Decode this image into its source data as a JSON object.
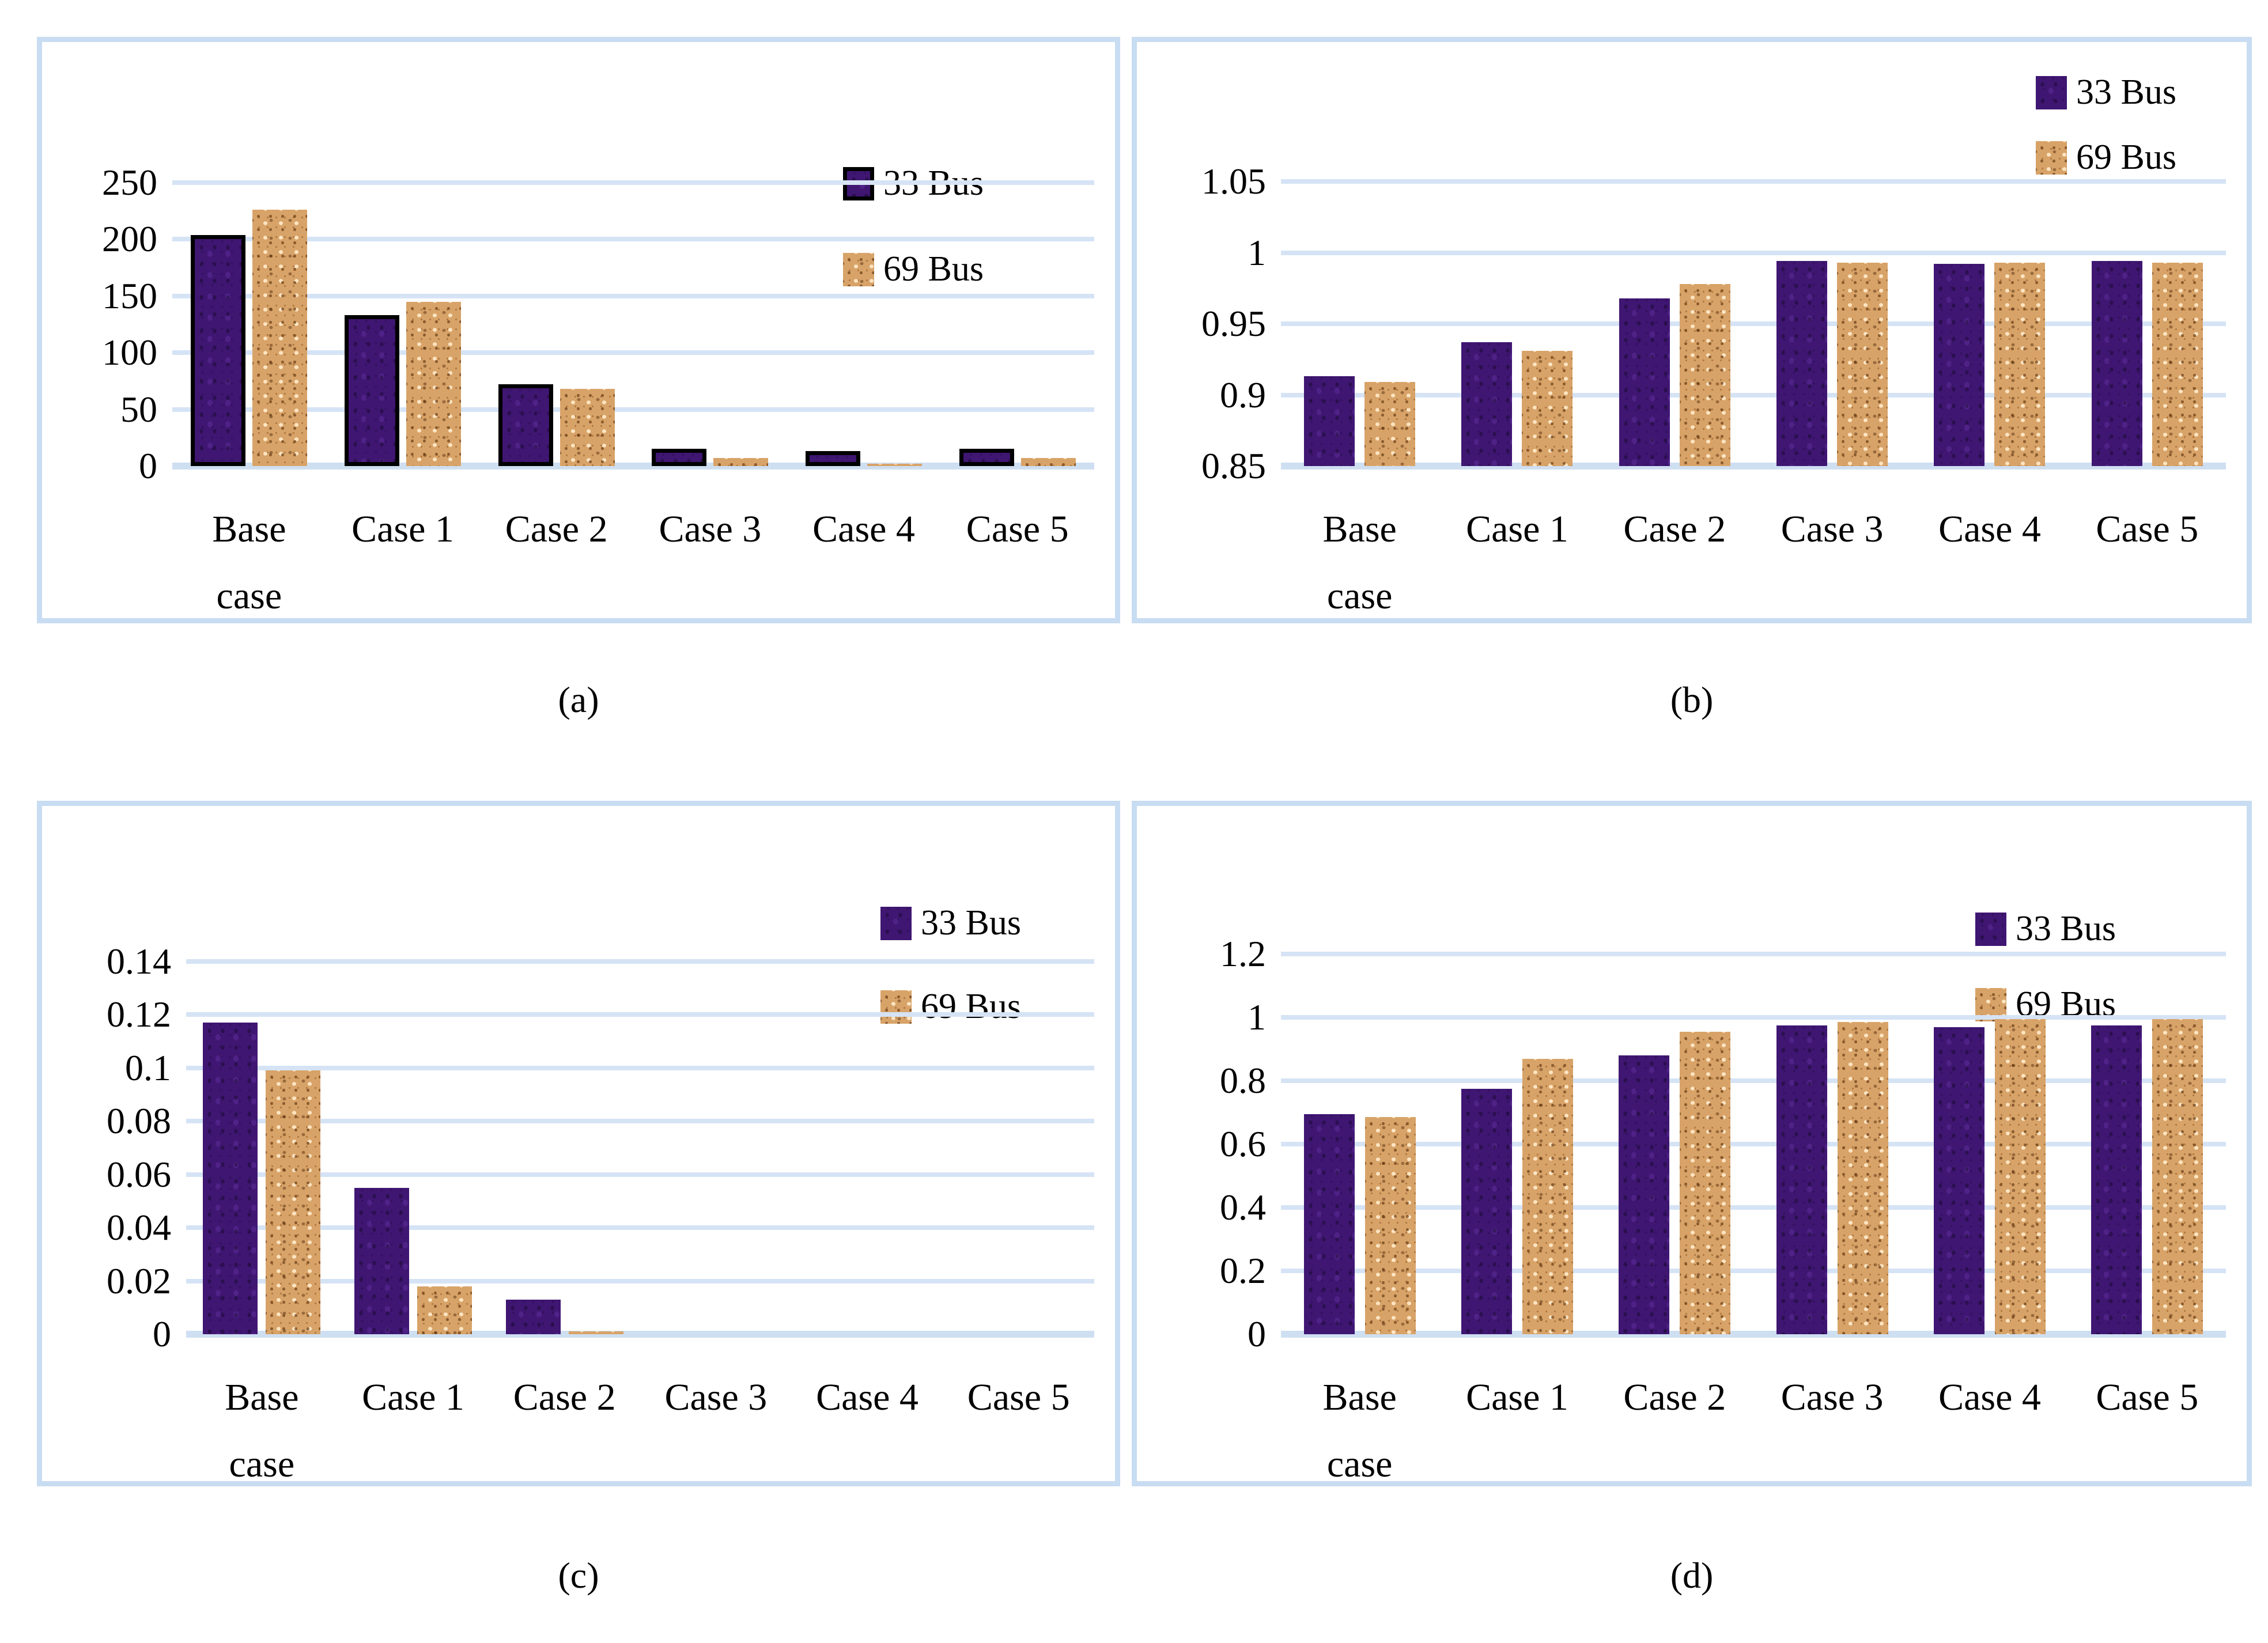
{
  "figure_captions": [
    "(a)",
    "(b)",
    "(c)",
    "(d)"
  ],
  "legend_labels": [
    "33 Bus",
    "69 Bus"
  ],
  "colors": {
    "series_33_bus": "#3f1672",
    "series_69_bus": "#d8a368",
    "bar_outline": "#000000",
    "gridline": "#d5e3f5",
    "panel_border": "#c8dcf2",
    "text": "#000000"
  },
  "chart_data": [
    {
      "id": "a",
      "type": "bar",
      "categories": [
        "Base case",
        "Case 1",
        "Case 2",
        "Case 3",
        "Case 4",
        "Case 5"
      ],
      "x_labels": [
        "Base\ncase",
        "Case 1",
        "Case 2",
        "Case 3",
        "Case 4",
        "Case 5"
      ],
      "series": [
        {
          "name": "33 Bus",
          "outlined": true,
          "values": [
            204,
            133,
            72,
            15,
            13,
            15
          ]
        },
        {
          "name": "69 Bus",
          "outlined": false,
          "values": [
            226,
            145,
            68,
            7,
            2,
            7
          ]
        }
      ],
      "ylim": [
        0,
        250
      ],
      "yticks": [
        {
          "value": 0,
          "label": "0"
        },
        {
          "value": 50,
          "label": "50"
        },
        {
          "value": 100,
          "label": "100"
        },
        {
          "value": 150,
          "label": "150"
        },
        {
          "value": 200,
          "label": "200"
        },
        {
          "value": 250,
          "label": "250"
        }
      ],
      "grid": true,
      "legend_position": "upper-right"
    },
    {
      "id": "b",
      "type": "bar",
      "categories": [
        "Base case",
        "Case 1",
        "Case 2",
        "Case 3",
        "Case 4",
        "Case 5"
      ],
      "x_labels": [
        "Base\ncase",
        "Case 1",
        "Case 2",
        "Case 3",
        "Case 4",
        "Case 5"
      ],
      "series": [
        {
          "name": "33 Bus",
          "outlined": false,
          "values": [
            0.913,
            0.937,
            0.968,
            0.994,
            0.992,
            0.994
          ]
        },
        {
          "name": "69 Bus",
          "outlined": false,
          "values": [
            0.909,
            0.931,
            0.978,
            0.993,
            0.993,
            0.993
          ]
        }
      ],
      "ylim": [
        0.85,
        1.05
      ],
      "yticks": [
        {
          "value": 0.85,
          "label": "0.85"
        },
        {
          "value": 0.9,
          "label": "0.9"
        },
        {
          "value": 0.95,
          "label": "0.95"
        },
        {
          "value": 1,
          "label": "1"
        },
        {
          "value": 1.05,
          "label": "1.05"
        }
      ],
      "grid": true,
      "legend_position": "upper-right"
    },
    {
      "id": "c",
      "type": "bar",
      "categories": [
        "Base case",
        "Case 1",
        "Case 2",
        "Case 3",
        "Case 4",
        "Case 5"
      ],
      "x_labels": [
        "Base\ncase",
        "Case 1",
        "Case 2",
        "Case 3",
        "Case 4",
        "Case 5"
      ],
      "series": [
        {
          "name": "33 Bus",
          "outlined": false,
          "values": [
            0.117,
            0.055,
            0.013,
            0,
            0,
            0
          ]
        },
        {
          "name": "69 Bus",
          "outlined": false,
          "values": [
            0.099,
            0.018,
            0.001,
            0,
            0,
            0
          ]
        }
      ],
      "ylim": [
        0,
        0.14
      ],
      "yticks": [
        {
          "value": 0,
          "label": "0"
        },
        {
          "value": 0.02,
          "label": "0.02"
        },
        {
          "value": 0.04,
          "label": "0.04"
        },
        {
          "value": 0.06,
          "label": "0.06"
        },
        {
          "value": 0.08,
          "label": "0.08"
        },
        {
          "value": 0.1,
          "label": "0.1"
        },
        {
          "value": 0.12,
          "label": "0.12"
        },
        {
          "value": 0.14,
          "label": "0.14"
        }
      ],
      "grid": true,
      "legend_position": "upper-right"
    },
    {
      "id": "d",
      "type": "bar",
      "categories": [
        "Base case",
        "Case 1",
        "Case 2",
        "Case 3",
        "Case 4",
        "Case 5"
      ],
      "x_labels": [
        "Base\ncase",
        "Case 1",
        "Case 2",
        "Case 3",
        "Case 4",
        "Case 5"
      ],
      "series": [
        {
          "name": "33 Bus",
          "outlined": false,
          "values": [
            0.695,
            0.775,
            0.88,
            0.975,
            0.97,
            0.975
          ]
        },
        {
          "name": "69 Bus",
          "outlined": false,
          "values": [
            0.685,
            0.87,
            0.955,
            0.985,
            0.995,
            0.995
          ]
        }
      ],
      "ylim": [
        0,
        1.2
      ],
      "yticks": [
        {
          "value": 0,
          "label": "0"
        },
        {
          "value": 0.2,
          "label": "0.2"
        },
        {
          "value": 0.4,
          "label": "0.4"
        },
        {
          "value": 0.6,
          "label": "0.6"
        },
        {
          "value": 0.8,
          "label": "0.8"
        },
        {
          "value": 1,
          "label": "1"
        },
        {
          "value": 1.2,
          "label": "1.2"
        }
      ],
      "grid": true,
      "legend_position": "upper-right"
    }
  ]
}
